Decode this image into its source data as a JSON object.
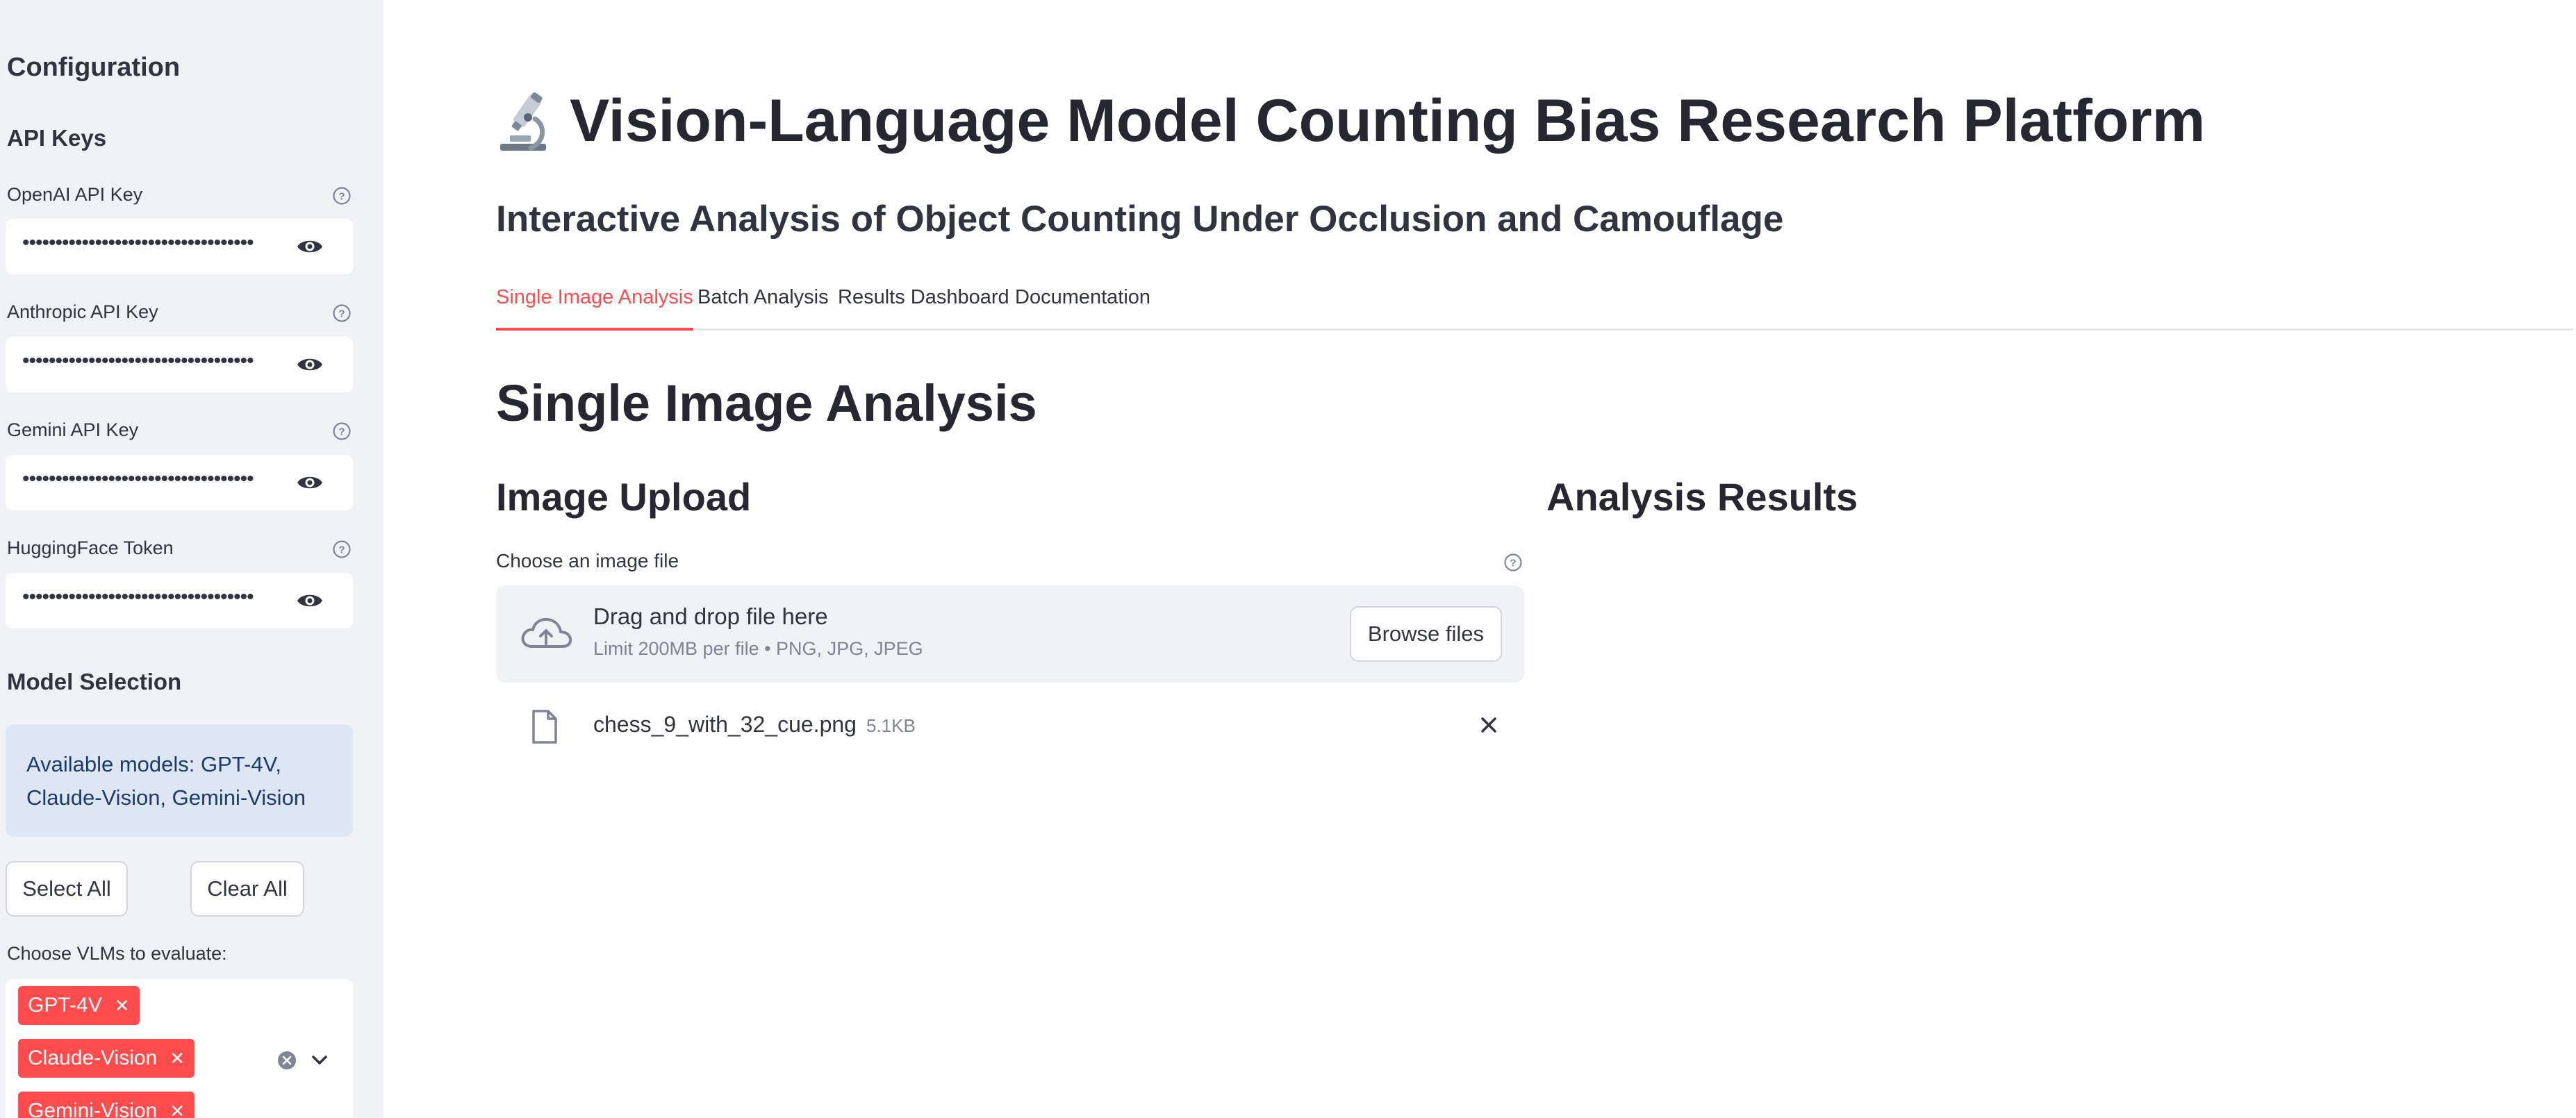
{
  "sidebar": {
    "title": "Configuration",
    "api_keys_heading": "API Keys",
    "api_fields": [
      {
        "label": "OpenAI API Key",
        "value": "•••••••••••••••••••••••••••••••••••"
      },
      {
        "label": "Anthropic API Key",
        "value": "•••••••••••••••••••••••••••••••••••"
      },
      {
        "label": "Gemini API Key",
        "value": "•••••••••••••••••••••••••••••••••••"
      },
      {
        "label": "HuggingFace Token",
        "value": "•••••••••••••••••••••••••••••••••••"
      }
    ],
    "model_selection_heading": "Model Selection",
    "info_text": "Available models: GPT-4V, Claude-Vision, Gemini-Vision",
    "select_all_label": "Select All",
    "clear_all_label": "Clear All",
    "multiselect_label": "Choose VLMs to evaluate:",
    "selected_models": [
      "GPT-4V",
      "Claude-Vision",
      "Gemini-Vision"
    ]
  },
  "main": {
    "title": "Vision-Language Model Counting Bias Research Platform",
    "subtitle": "Interactive Analysis of Object Counting Under Occlusion and Camouflage",
    "tabs": [
      {
        "label": "Single Image Analysis",
        "active": true
      },
      {
        "label": "Batch Analysis",
        "active": false
      },
      {
        "label": "Results Dashboard",
        "active": false
      },
      {
        "label": "Documentation",
        "active": false
      }
    ],
    "section_title": "Single Image Analysis",
    "upload_heading": "Image Upload",
    "results_heading": "Analysis Results",
    "uploader": {
      "label": "Choose an image file",
      "drop_text": "Drag and drop file here",
      "limit_text": "Limit 200MB per file • PNG, JPG, JPEG",
      "browse_label": "Browse files"
    },
    "uploaded_file": {
      "name": "chess_9_with_32_cue.png",
      "size": "5.1KB"
    }
  },
  "colors": {
    "accent": "#ff4b4b",
    "sidebar_bg": "#f0f2f6",
    "info_bg": "#dde6f3",
    "info_text": "#1e3a6e"
  },
  "icons": [
    "help-icon",
    "eye-icon",
    "microscope-icon",
    "cloud-upload-icon",
    "file-icon",
    "close-icon",
    "clear-circle-icon",
    "chevron-down-icon"
  ]
}
